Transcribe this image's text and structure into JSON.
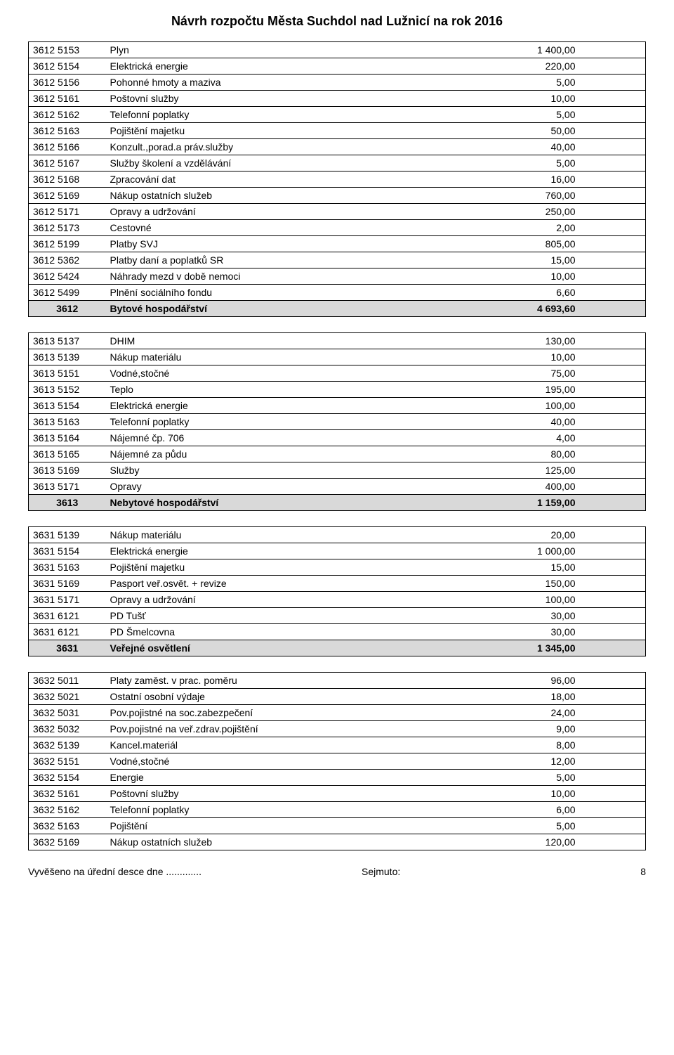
{
  "title": "Návrh rozpočtu Města Suchdol nad Lužnicí na rok 2016",
  "tables": [
    {
      "rows": [
        {
          "code": "3612 5153",
          "desc": "Plyn",
          "val": "1 400,00"
        },
        {
          "code": "3612 5154",
          "desc": "Elektrická energie",
          "val": "220,00"
        },
        {
          "code": "3612 5156",
          "desc": "Pohonné hmoty a maziva",
          "val": "5,00"
        },
        {
          "code": "3612 5161",
          "desc": "Poštovní služby",
          "val": "10,00"
        },
        {
          "code": "3612 5162",
          "desc": "Telefonní poplatky",
          "val": "5,00"
        },
        {
          "code": "3612 5163",
          "desc": "Pojištění majetku",
          "val": "50,00"
        },
        {
          "code": "3612 5166",
          "desc": "Konzult.,porad.a práv.služby",
          "val": "40,00"
        },
        {
          "code": "3612 5167",
          "desc": "Služby školení a vzdělávání",
          "val": "5,00"
        },
        {
          "code": "3612 5168",
          "desc": "Zpracování dat",
          "val": "16,00"
        },
        {
          "code": "3612 5169",
          "desc": "Nákup ostatních služeb",
          "val": "760,00"
        },
        {
          "code": "3612 5171",
          "desc": "Opravy a udržování",
          "val": "250,00"
        },
        {
          "code": "3612 5173",
          "desc": "Cestovné",
          "val": "2,00"
        },
        {
          "code": "3612 5199",
          "desc": "Platby SVJ",
          "val": "805,00"
        },
        {
          "code": "3612 5362",
          "desc": "Platby daní a poplatků SR",
          "val": "15,00"
        },
        {
          "code": "3612 5424",
          "desc": "Náhrady mezd v době nemoci",
          "val": "10,00"
        },
        {
          "code": "3612 5499",
          "desc": "Plnění sociálního fondu",
          "val": "6,60"
        }
      ],
      "total": {
        "code": "3612",
        "desc": "Bytové hospodářství",
        "val": "4 693,60"
      }
    },
    {
      "rows": [
        {
          "code": "3613 5137",
          "desc": "DHIM",
          "val": "130,00"
        },
        {
          "code": "3613 5139",
          "desc": "Nákup materiálu",
          "val": "10,00"
        },
        {
          "code": "3613 5151",
          "desc": "Vodné,stočné",
          "val": "75,00"
        },
        {
          "code": "3613 5152",
          "desc": "Teplo",
          "val": "195,00"
        },
        {
          "code": "3613 5154",
          "desc": "Elektrická energie",
          "val": "100,00"
        },
        {
          "code": "3613 5163",
          "desc": "Telefonní poplatky",
          "val": "40,00"
        },
        {
          "code": "3613 5164",
          "desc": "Nájemné čp. 706",
          "val": "4,00"
        },
        {
          "code": "3613 5165",
          "desc": "Nájemné za půdu",
          "val": "80,00"
        },
        {
          "code": "3613 5169",
          "desc": "Služby",
          "val": "125,00"
        },
        {
          "code": "3613 5171",
          "desc": "Opravy",
          "val": "400,00"
        }
      ],
      "total": {
        "code": "3613",
        "desc": "Nebytové hospodářství",
        "val": "1 159,00"
      }
    },
    {
      "rows": [
        {
          "code": "3631 5139",
          "desc": "Nákup materiálu",
          "val": "20,00"
        },
        {
          "code": "3631 5154",
          "desc": "Elektrická energie",
          "val": "1 000,00"
        },
        {
          "code": "3631 5163",
          "desc": "Pojištění majetku",
          "val": "15,00"
        },
        {
          "code": "3631 5169",
          "desc": "Pasport veř.osvět. + revize",
          "val": "150,00"
        },
        {
          "code": "3631 5171",
          "desc": "Opravy a udržování",
          "val": "100,00"
        },
        {
          "code": "3631 6121",
          "desc": "PD Tušť",
          "val": "30,00"
        },
        {
          "code": "3631 6121",
          "desc": "PD Šmelcovna",
          "val": "30,00"
        }
      ],
      "total": {
        "code": "3631",
        "desc": "Veřejné osvětlení",
        "val": "1 345,00"
      }
    },
    {
      "rows": [
        {
          "code": "3632 5011",
          "desc": "Platy zaměst. v prac. poměru",
          "val": "96,00"
        },
        {
          "code": "3632 5021",
          "desc": "Ostatní osobní výdaje",
          "val": "18,00"
        },
        {
          "code": "3632 5031",
          "desc": "Pov.pojistné na soc.zabezpečení",
          "val": "24,00"
        },
        {
          "code": "3632 5032",
          "desc": "Pov.pojistné na veř.zdrav.pojištění",
          "val": "9,00"
        },
        {
          "code": "3632 5139",
          "desc": "Kancel.materiál",
          "val": "8,00"
        },
        {
          "code": "3632 5151",
          "desc": "Vodné,stočné",
          "val": "12,00"
        },
        {
          "code": "3632  5154",
          "desc": "Energie",
          "val": "5,00"
        },
        {
          "code": "3632 5161",
          "desc": "Poštovní služby",
          "val": "10,00"
        },
        {
          "code": "3632 5162",
          "desc": "Telefonní poplatky",
          "val": "6,00"
        },
        {
          "code": "3632 5163",
          "desc": "Pojištění",
          "val": "5,00"
        },
        {
          "code": "3632 5169",
          "desc": "Nákup ostatních služeb",
          "val": "120,00"
        }
      ],
      "total": null
    }
  ],
  "footer": {
    "left": "Vyvěšeno na úřední desce dne .............",
    "mid": "Sejmuto:",
    "page": "8"
  },
  "style": {
    "total_bg": "#d9d9d9",
    "border_color": "#000000",
    "font_family": "Arial",
    "title_fontsize": 18,
    "body_fontsize": 14
  }
}
